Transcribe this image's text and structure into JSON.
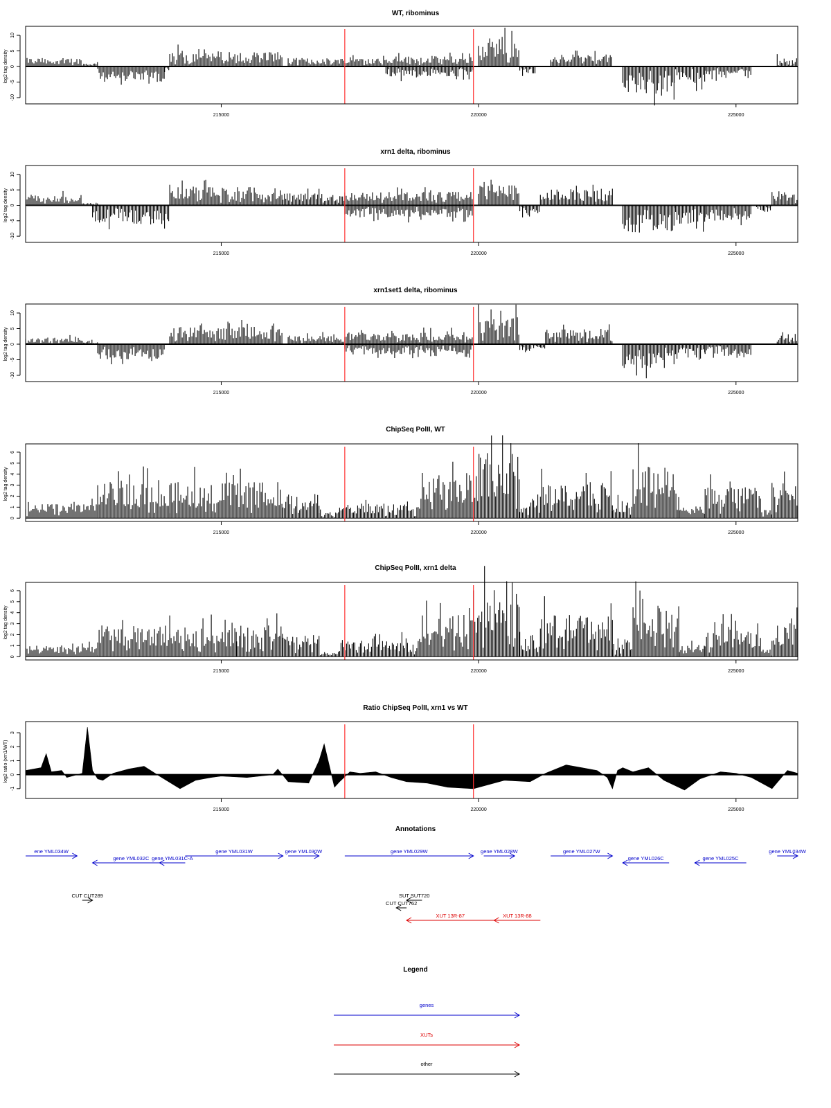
{
  "xaxis": {
    "range": [
      211200,
      226200
    ],
    "ticks": [
      215000,
      220000,
      225000
    ],
    "tick_labels": [
      "215000",
      "220000",
      "225000"
    ],
    "red_markers": [
      217400,
      219900
    ]
  },
  "colors": {
    "signal": "#000000",
    "marker": "#ff3030",
    "genes": "#0000cc",
    "xuts": "#dd0000",
    "other": "#000000"
  },
  "chart_data": [
    {
      "id": "wt-ribominus",
      "type": "bar",
      "title": "WT, ribominus",
      "ylabel": "log2 tag density",
      "ylim": [
        -12,
        12
      ],
      "yticks": [
        -10,
        -5,
        0,
        5,
        10
      ],
      "ytick_labels": [
        "-10",
        "-5",
        "0",
        "5",
        "10"
      ],
      "style": "mirrored",
      "segments": [
        {
          "start": 211200,
          "end": 212300,
          "sign": 1,
          "level": 2.5
        },
        {
          "start": 212300,
          "end": 212600,
          "sign": 1,
          "level": 1.0
        },
        {
          "start": 212600,
          "end": 213900,
          "sign": -1,
          "level": 4.5
        },
        {
          "start": 213900,
          "end": 214000,
          "sign": -1,
          "level": 1.5
        },
        {
          "start": 214000,
          "end": 216200,
          "sign": 1,
          "level": 4.5
        },
        {
          "start": 216300,
          "end": 217400,
          "sign": 1,
          "level": 2.5
        },
        {
          "start": 217400,
          "end": 219900,
          "sign": 1,
          "level": 3.0
        },
        {
          "start": 218200,
          "end": 219900,
          "sign": -1,
          "level": 3.0
        },
        {
          "start": 220000,
          "end": 220800,
          "sign": 1,
          "level": 8.5
        },
        {
          "start": 220800,
          "end": 221100,
          "sign": -1,
          "level": 2.0
        },
        {
          "start": 221400,
          "end": 222600,
          "sign": 1,
          "level": 3.5
        },
        {
          "start": 222800,
          "end": 223800,
          "sign": -1,
          "level": 8.0
        },
        {
          "start": 223800,
          "end": 224400,
          "sign": -1,
          "level": 5.0
        },
        {
          "start": 224400,
          "end": 225300,
          "sign": -1,
          "level": 3.5
        },
        {
          "start": 225800,
          "end": 226200,
          "sign": 1,
          "level": 2.5
        }
      ]
    },
    {
      "id": "xrn1-ribominus",
      "type": "bar",
      "title": "xrn1 delta, ribominus",
      "ylabel": "log2 tag density",
      "ylim": [
        -12,
        12
      ],
      "yticks": [
        -10,
        -5,
        0,
        5,
        10
      ],
      "ytick_labels": [
        "-10",
        "-5",
        "0",
        "5",
        "10"
      ],
      "style": "mirrored",
      "segments": [
        {
          "start": 211200,
          "end": 212300,
          "sign": 1,
          "level": 3.0
        },
        {
          "start": 212300,
          "end": 212600,
          "sign": 1,
          "level": 1.0
        },
        {
          "start": 212500,
          "end": 214000,
          "sign": -1,
          "level": 5.5
        },
        {
          "start": 214000,
          "end": 216200,
          "sign": 1,
          "level": 5.5
        },
        {
          "start": 216200,
          "end": 217400,
          "sign": 1,
          "level": 3.5
        },
        {
          "start": 217400,
          "end": 219900,
          "sign": 1,
          "level": 4.0
        },
        {
          "start": 217400,
          "end": 219900,
          "sign": -1,
          "level": 3.5
        },
        {
          "start": 220000,
          "end": 220800,
          "sign": 1,
          "level": 8.0
        },
        {
          "start": 220800,
          "end": 221200,
          "sign": -1,
          "level": 2.5
        },
        {
          "start": 221200,
          "end": 222600,
          "sign": 1,
          "level": 5.0
        },
        {
          "start": 222800,
          "end": 223800,
          "sign": -1,
          "level": 8.0
        },
        {
          "start": 223800,
          "end": 224400,
          "sign": -1,
          "level": 5.5
        },
        {
          "start": 224400,
          "end": 225300,
          "sign": -1,
          "level": 4.5
        },
        {
          "start": 225400,
          "end": 225700,
          "sign": -1,
          "level": 1.5
        },
        {
          "start": 225700,
          "end": 226200,
          "sign": 1,
          "level": 4.0
        }
      ]
    },
    {
      "id": "xrn1set1-ribominus",
      "type": "bar",
      "title": "xrn1set1 delta, ribominus",
      "ylabel": "log2 tag density",
      "ylim": [
        -12,
        12
      ],
      "yticks": [
        -10,
        -5,
        0,
        5,
        10
      ],
      "ytick_labels": [
        "-10",
        "-5",
        "0",
        "5",
        "10"
      ],
      "style": "mirrored",
      "segments": [
        {
          "start": 211200,
          "end": 212300,
          "sign": 1,
          "level": 2.0
        },
        {
          "start": 212300,
          "end": 212600,
          "sign": 1,
          "level": 1.0
        },
        {
          "start": 212600,
          "end": 213900,
          "sign": -1,
          "level": 4.5
        },
        {
          "start": 214000,
          "end": 216200,
          "sign": 1,
          "level": 5.0
        },
        {
          "start": 216300,
          "end": 217400,
          "sign": 1,
          "level": 2.5
        },
        {
          "start": 217400,
          "end": 219900,
          "sign": 1,
          "level": 3.5
        },
        {
          "start": 217400,
          "end": 219900,
          "sign": -1,
          "level": 3.0
        },
        {
          "start": 220000,
          "end": 220800,
          "sign": 1,
          "level": 8.0
        },
        {
          "start": 220800,
          "end": 221300,
          "sign": -1,
          "level": 2.0
        },
        {
          "start": 221300,
          "end": 222600,
          "sign": 1,
          "level": 4.5
        },
        {
          "start": 222800,
          "end": 223800,
          "sign": -1,
          "level": 7.0
        },
        {
          "start": 223800,
          "end": 224400,
          "sign": -1,
          "level": 4.0
        },
        {
          "start": 224400,
          "end": 225300,
          "sign": -1,
          "level": 4.0
        },
        {
          "start": 225800,
          "end": 226200,
          "sign": 1,
          "level": 2.5
        }
      ]
    },
    {
      "id": "chip-wt",
      "type": "bar",
      "title": "ChipSeq PolII, WT",
      "ylabel": "log2 tag density",
      "ylim": [
        -0.3,
        6.5
      ],
      "yticks": [
        0,
        1,
        2,
        3,
        4,
        5,
        6
      ],
      "ytick_labels": [
        "0",
        "1",
        "2",
        "3",
        "4",
        "5",
        "6"
      ],
      "style": "positive",
      "segments": [
        {
          "start": 211200,
          "end": 212600,
          "sign": 1,
          "level": 1.2
        },
        {
          "start": 212600,
          "end": 214000,
          "sign": 1,
          "level": 3.0
        },
        {
          "start": 214000,
          "end": 216200,
          "sign": 1,
          "level": 3.0
        },
        {
          "start": 216200,
          "end": 216900,
          "sign": 1,
          "level": 2.0
        },
        {
          "start": 216900,
          "end": 217300,
          "sign": 1,
          "level": 0.5
        },
        {
          "start": 217300,
          "end": 218800,
          "sign": 1,
          "level": 1.2
        },
        {
          "start": 218800,
          "end": 219900,
          "sign": 1,
          "level": 4.0
        },
        {
          "start": 219900,
          "end": 220800,
          "sign": 1,
          "level": 5.6
        },
        {
          "start": 220800,
          "end": 221200,
          "sign": 1,
          "level": 1.8
        },
        {
          "start": 221200,
          "end": 222600,
          "sign": 1,
          "level": 3.0
        },
        {
          "start": 222600,
          "end": 223000,
          "sign": 1,
          "level": 1.5
        },
        {
          "start": 223000,
          "end": 223900,
          "sign": 1,
          "level": 4.3
        },
        {
          "start": 223900,
          "end": 224400,
          "sign": 1,
          "level": 1.0
        },
        {
          "start": 224400,
          "end": 225500,
          "sign": 1,
          "level": 2.6
        },
        {
          "start": 225500,
          "end": 225700,
          "sign": 1,
          "level": 0.8
        },
        {
          "start": 225700,
          "end": 226200,
          "sign": 1,
          "level": 3.0
        }
      ]
    },
    {
      "id": "chip-xrn1",
      "type": "bar",
      "title": "ChipSeq PolII, xrn1 delta",
      "ylabel": "log2 tag density",
      "ylim": [
        -0.3,
        6.5
      ],
      "yticks": [
        0,
        1,
        2,
        3,
        4,
        5,
        6
      ],
      "ytick_labels": [
        "0",
        "1",
        "2",
        "3",
        "4",
        "5",
        "6"
      ],
      "style": "positive",
      "segments": [
        {
          "start": 211200,
          "end": 212600,
          "sign": 1,
          "level": 0.9
        },
        {
          "start": 212600,
          "end": 214000,
          "sign": 1,
          "level": 2.6
        },
        {
          "start": 214000,
          "end": 215300,
          "sign": 1,
          "level": 2.4
        },
        {
          "start": 215300,
          "end": 216200,
          "sign": 1,
          "level": 2.6
        },
        {
          "start": 216200,
          "end": 216900,
          "sign": 1,
          "level": 1.8
        },
        {
          "start": 216900,
          "end": 217300,
          "sign": 1,
          "level": 0.4
        },
        {
          "start": 217300,
          "end": 218800,
          "sign": 1,
          "level": 1.4
        },
        {
          "start": 218800,
          "end": 219900,
          "sign": 1,
          "level": 3.5
        },
        {
          "start": 219900,
          "end": 220800,
          "sign": 1,
          "level": 5.2
        },
        {
          "start": 220800,
          "end": 221200,
          "sign": 1,
          "level": 1.8
        },
        {
          "start": 221200,
          "end": 222600,
          "sign": 1,
          "level": 3.5
        },
        {
          "start": 222600,
          "end": 223000,
          "sign": 1,
          "level": 1.2
        },
        {
          "start": 223000,
          "end": 223900,
          "sign": 1,
          "level": 4.3
        },
        {
          "start": 223900,
          "end": 224400,
          "sign": 1,
          "level": 1.0
        },
        {
          "start": 224400,
          "end": 225500,
          "sign": 1,
          "level": 2.5
        },
        {
          "start": 225500,
          "end": 225700,
          "sign": 1,
          "level": 0.6
        },
        {
          "start": 225700,
          "end": 226200,
          "sign": 1,
          "level": 3.0
        }
      ]
    },
    {
      "id": "ratio",
      "type": "area",
      "title": "Ratio ChipSeq PolII, xrn1 vs WT",
      "ylabel": "log2 ratio (xrn1/WT)",
      "ylim": [
        -1.7,
        3.6
      ],
      "yticks": [
        -1,
        0,
        1,
        2,
        3
      ],
      "ytick_labels": [
        "-1",
        "0",
        "1",
        "2",
        "3"
      ],
      "style": "curve",
      "x": [
        211200,
        211500,
        211600,
        211700,
        211900,
        212000,
        212300,
        212400,
        212500,
        212600,
        212700,
        212900,
        213200,
        213500,
        213800,
        214200,
        214500,
        214800,
        215000,
        215500,
        216000,
        216100,
        216300,
        216700,
        216900,
        217000,
        217200,
        217300,
        217500,
        217700,
        218000,
        218300,
        218600,
        219000,
        219400,
        219900,
        220500,
        221000,
        221300,
        221700,
        222000,
        222300,
        222500,
        222600,
        222700,
        222800,
        223000,
        223300,
        223600,
        224000,
        224300,
        224700,
        225000,
        225300,
        225700,
        226000,
        226200
      ],
      "values": [
        0.3,
        0.5,
        1.5,
        0.2,
        0.3,
        -0.2,
        0.1,
        3.4,
        0.3,
        -0.3,
        -0.4,
        0.1,
        0.4,
        0.6,
        -0.1,
        -1.0,
        -0.4,
        -0.2,
        -0.1,
        -0.2,
        0.0,
        0.4,
        -0.5,
        -0.6,
        1.0,
        2.2,
        -0.9,
        -0.5,
        0.2,
        0.1,
        0.2,
        -0.2,
        -0.5,
        -0.6,
        -0.9,
        -1.0,
        -0.4,
        -0.5,
        0.1,
        0.7,
        0.5,
        0.3,
        -0.2,
        -1.0,
        0.3,
        0.5,
        0.2,
        0.5,
        -0.4,
        -1.1,
        -0.3,
        0.2,
        0.1,
        -0.2,
        -1.0,
        0.3,
        0.1
      ]
    }
  ],
  "annotations": {
    "title": "Annotations",
    "features": [
      {
        "label": "ene YML034W",
        "start": 211200,
        "end": 212200,
        "row": 0,
        "dir": "+",
        "kind": "gene"
      },
      {
        "label": "gene YML032C",
        "start": 212500,
        "end": 214000,
        "row": 1,
        "dir": "-",
        "kind": "gene"
      },
      {
        "label": "gene YML031C-A",
        "start": 213800,
        "end": 214300,
        "row": 1,
        "dir": "-",
        "kind": "gene"
      },
      {
        "label": "gene YML031W",
        "start": 214300,
        "end": 216200,
        "row": 0,
        "dir": "+",
        "kind": "gene"
      },
      {
        "label": "gene YML030W",
        "start": 216300,
        "end": 216900,
        "row": 0,
        "dir": "+",
        "kind": "gene"
      },
      {
        "label": "gene YML029W",
        "start": 217400,
        "end": 219900,
        "row": 0,
        "dir": "+",
        "kind": "gene"
      },
      {
        "label": "gene YML028W",
        "start": 220100,
        "end": 220700,
        "row": 0,
        "dir": "+",
        "kind": "gene"
      },
      {
        "label": "gene YML027W",
        "start": 221400,
        "end": 222600,
        "row": 0,
        "dir": "+",
        "kind": "gene"
      },
      {
        "label": "gene YML026C",
        "start": 222800,
        "end": 223700,
        "row": 1,
        "dir": "-",
        "kind": "gene"
      },
      {
        "label": "gene YML025C",
        "start": 224200,
        "end": 225200,
        "row": 1,
        "dir": "-",
        "kind": "gene"
      },
      {
        "label": "gene YML034W",
        "start": 225800,
        "end": 226200,
        "row": 0,
        "dir": "+",
        "kind": "gene"
      },
      {
        "label": "CUT CUT289",
        "start": 212300,
        "end": 212500,
        "row": 2,
        "dir": "+",
        "kind": "other"
      },
      {
        "label": "SUT SUT720",
        "start": 218600,
        "end": 218900,
        "row": 2,
        "dir": "-",
        "kind": "other"
      },
      {
        "label": "CUT CUT762",
        "start": 218400,
        "end": 218600,
        "row": 3,
        "dir": "-",
        "kind": "other"
      },
      {
        "label": "XUT 13R-87",
        "start": 218600,
        "end": 220300,
        "row": 4,
        "dir": "-",
        "kind": "xut"
      },
      {
        "label": "XUT 13R-88",
        "start": 220300,
        "end": 221200,
        "row": 4,
        "dir": "-",
        "kind": "xut"
      }
    ]
  },
  "legend": {
    "title": "Legend",
    "items": [
      {
        "label": "genes",
        "kind": "gene"
      },
      {
        "label": "XUTs",
        "kind": "xut"
      },
      {
        "label": "other",
        "kind": "other"
      }
    ]
  }
}
